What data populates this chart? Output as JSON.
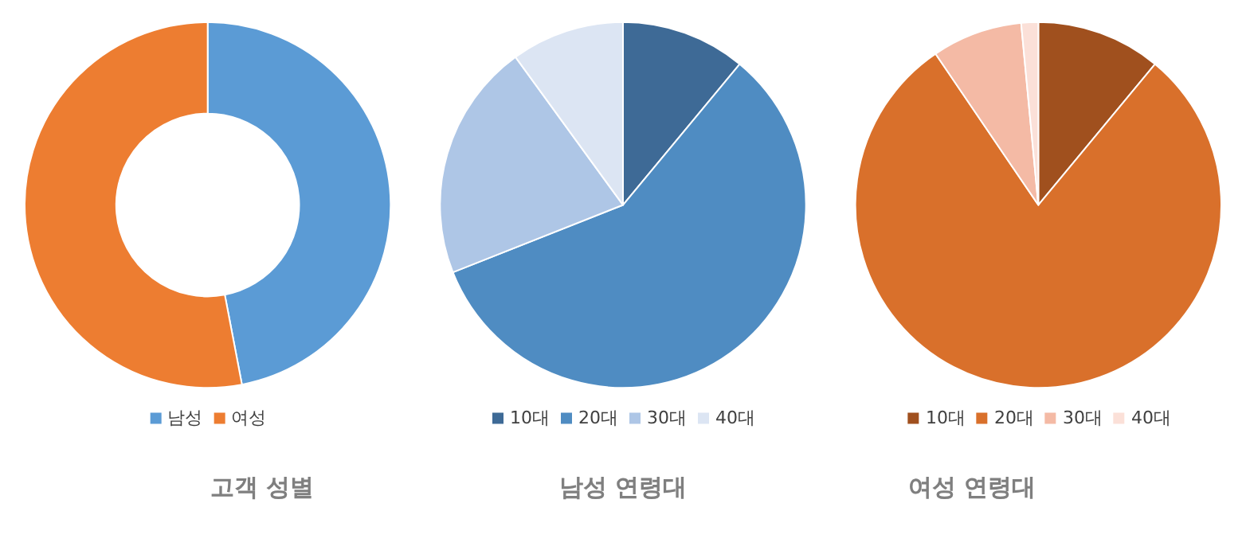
{
  "chart_data": [
    {
      "type": "donut",
      "title": "고객 성별",
      "categories": [
        "남성",
        "여성"
      ],
      "values": [
        47,
        53
      ],
      "colors": [
        "#5b9bd5",
        "#ed7d31"
      ],
      "legend": "bottom"
    },
    {
      "type": "pie",
      "title": "남성 연령대",
      "categories": [
        "10대",
        "20대",
        "30대",
        "40대"
      ],
      "values": [
        11,
        58,
        21,
        10
      ],
      "colors": [
        "#3e6a96",
        "#4f8cc2",
        "#aec6e6",
        "#dce5f3"
      ],
      "legend": "bottom"
    },
    {
      "type": "pie",
      "title": "여성 연령대",
      "categories": [
        "10대",
        "20대",
        "30대",
        "40대"
      ],
      "values": [
        11,
        79.5,
        8,
        1.5
      ],
      "colors": [
        "#a0501e",
        "#d9702b",
        "#f4baa5",
        "#fbe0d8"
      ],
      "legend": "bottom"
    }
  ]
}
